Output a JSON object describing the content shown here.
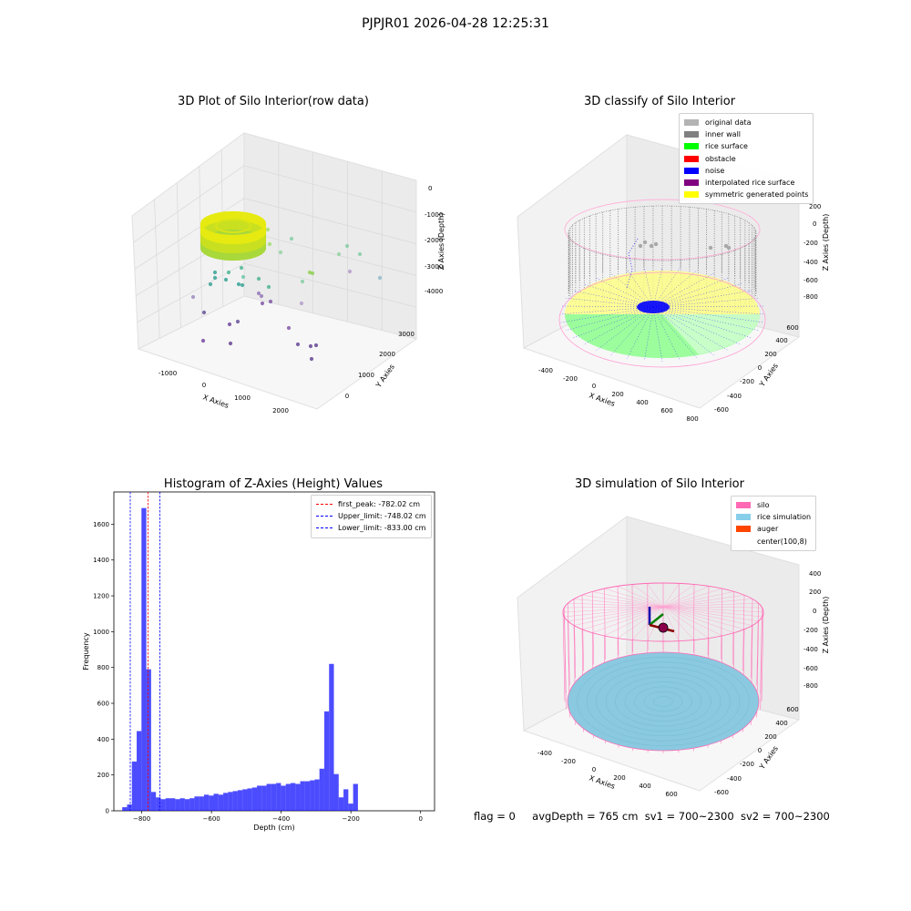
{
  "suptitle": "PJPJR01 2026-04-28 12:25:31",
  "panels": {
    "raw": {
      "title": "3D Plot of Silo Interior(row data)",
      "xlabel": "X Axies",
      "ylabel": "Y Axies",
      "zlabel": "Z Axies (Depth)",
      "xticks": [
        "-1000",
        "0",
        "1000",
        "2000"
      ],
      "yticks": [
        "0",
        "1000",
        "2000",
        "3000"
      ],
      "zticks": [
        "0",
        "-1000",
        "-2000",
        "-3000",
        "-4000"
      ]
    },
    "classify": {
      "title": "3D classify of Silo Interior",
      "xlabel": "X Axies",
      "ylabel": "Y Axies",
      "zlabel": "Z Axies (Depth)",
      "xticks": [
        "-400",
        "-200",
        "0",
        "200",
        "400",
        "600",
        "800"
      ],
      "yticks": [
        "-600",
        "-400",
        "-200",
        "0",
        "200",
        "400",
        "600"
      ],
      "zticks": [
        "200",
        "0",
        "-200",
        "-400",
        "-600",
        "-800"
      ],
      "legend": [
        {
          "label": "original data",
          "color": "#b3b3b3"
        },
        {
          "label": "inner wall",
          "color": "#808080"
        },
        {
          "label": "rice surface",
          "color": "#00ff00"
        },
        {
          "label": "obstacle",
          "color": "#ff0000"
        },
        {
          "label": "noise",
          "color": "#0000ff"
        },
        {
          "label": "interpolated rice surface",
          "color": "#800080"
        },
        {
          "label": "symmetric generated points",
          "color": "#ffff00"
        }
      ]
    },
    "simulation": {
      "title": "3D simulation of Silo Interior",
      "xlabel": "X Axies",
      "ylabel": "Y Axies",
      "zlabel": "Z Axies (Depth)",
      "xticks": [
        "-400",
        "-200",
        "0",
        "200",
        "400",
        "600"
      ],
      "yticks": [
        "-600",
        "-400",
        "-200",
        "0",
        "200",
        "400",
        "600"
      ],
      "zticks": [
        "400",
        "200",
        "0",
        "-200",
        "-400",
        "-600",
        "-800"
      ],
      "legend": [
        {
          "label": "silo",
          "color": "#ff69b4"
        },
        {
          "label": "rice simulation",
          "color": "#87ceeb"
        },
        {
          "label": "auger",
          "color": "#ff4500"
        },
        {
          "label": "center(100,8)",
          "color": "#ffffff"
        }
      ]
    }
  },
  "chart_data": {
    "type": "bar",
    "title": "Histogram of Z-Axies (Height) Values",
    "xlabel": "Depth (cm)",
    "ylabel": "Frequency",
    "xlim": [
      -880,
      40
    ],
    "ylim": [
      0,
      1780
    ],
    "xticks": [
      -800,
      -600,
      -400,
      -200,
      0
    ],
    "yticks": [
      0,
      200,
      400,
      600,
      800,
      1000,
      1200,
      1400,
      1600
    ],
    "bar_color": "#0000ff",
    "bin_start": -856,
    "bin_width": 13.8,
    "values": [
      20,
      35,
      275,
      445,
      1690,
      790,
      105,
      75,
      65,
      70,
      70,
      65,
      70,
      65,
      70,
      80,
      80,
      90,
      85,
      95,
      90,
      100,
      105,
      110,
      115,
      120,
      125,
      130,
      140,
      140,
      150,
      150,
      155,
      140,
      150,
      155,
      150,
      165,
      165,
      170,
      175,
      235,
      555,
      820,
      205,
      75,
      120,
      40,
      150
    ],
    "lines": [
      {
        "name": "first_peak: -782.02 cm",
        "x": -782.02,
        "color": "#ff0000"
      },
      {
        "name": "Upper_limit: -748.02 cm",
        "x": -748.02,
        "color": "#0000ff"
      },
      {
        "name": "Lower_limit: -833.00 cm",
        "x": -833.0,
        "color": "#0000ff"
      }
    ],
    "legend_position": "upper right"
  },
  "status": {
    "flag": "flag = 0",
    "avg": "avgDepth = 765 cm",
    "sv1": "sv1 = 700~2300",
    "sv2": "sv2 = 700~2300"
  }
}
